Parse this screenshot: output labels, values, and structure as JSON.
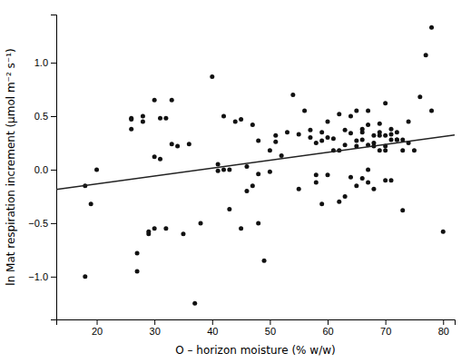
{
  "chart_data": {
    "type": "scatter",
    "xlabel": "O – horizon moisture (% w/w)",
    "ylabel": "ln Mat respiration increment (μmol m⁻² s⁻¹)",
    "series": [
      {
        "type": "scatter",
        "color": "#111111",
        "x": [
          18,
          18,
          19,
          20,
          26,
          26,
          26,
          27,
          27,
          28,
          28,
          29,
          29,
          30,
          30,
          30,
          31,
          31,
          32,
          32,
          33,
          33,
          34,
          35,
          36,
          37,
          38,
          40,
          41,
          41,
          42,
          42,
          43,
          43,
          44,
          45,
          45,
          46,
          46,
          47,
          47,
          48,
          48,
          48,
          49,
          50,
          50,
          51,
          51,
          52,
          53,
          54,
          55,
          55,
          56,
          57,
          57,
          58,
          58,
          58,
          59,
          59,
          59,
          60,
          60,
          60,
          61,
          61,
          62,
          62,
          62,
          63,
          63,
          63,
          64,
          64,
          64,
          65,
          65,
          65,
          65,
          66,
          66,
          66,
          66,
          67,
          67,
          67,
          67,
          67,
          68,
          68,
          68,
          68,
          69,
          69,
          69,
          69,
          70,
          70,
          70,
          70,
          70,
          71,
          71,
          71,
          71,
          72,
          72,
          72,
          73,
          73,
          73,
          74,
          74,
          75,
          76,
          77,
          78,
          78,
          80
        ],
        "values": [
          -0.15,
          -1.0,
          -0.32,
          0.0,
          0.47,
          0.48,
          0.38,
          -0.78,
          -0.95,
          0.5,
          0.45,
          -0.58,
          -0.6,
          0.12,
          0.65,
          -0.55,
          0.1,
          0.48,
          0.48,
          -0.55,
          0.24,
          0.65,
          0.22,
          -0.6,
          0.24,
          -1.25,
          -0.5,
          0.87,
          -0.01,
          0.05,
          0.0,
          0.5,
          -0.37,
          0.0,
          0.45,
          -0.55,
          0.47,
          0.03,
          -0.2,
          -0.15,
          0.42,
          0.27,
          -0.04,
          -0.5,
          -0.85,
          -0.02,
          0.18,
          0.26,
          0.32,
          0.13,
          0.35,
          0.7,
          0.33,
          -0.18,
          0.55,
          0.3,
          0.37,
          -0.05,
          0.25,
          -0.12,
          -0.32,
          0.27,
          0.35,
          0.45,
          0.3,
          -0.05,
          0.18,
          0.29,
          0.52,
          0.18,
          -0.3,
          0.37,
          0.23,
          -0.25,
          0.34,
          0.5,
          -0.07,
          0.22,
          0.27,
          0.55,
          -0.15,
          0.38,
          0.28,
          -0.08,
          0.35,
          0.55,
          0.42,
          0.23,
          -0.12,
          0.0,
          0.22,
          0.32,
          -0.18,
          0.25,
          0.35,
          0.43,
          0.32,
          0.18,
          0.62,
          0.18,
          0.32,
          0.22,
          -0.1,
          0.33,
          0.28,
          0.38,
          -0.1,
          0.28,
          0.28,
          0.35,
          -0.38,
          0.28,
          0.18,
          0.45,
          0.25,
          0.18,
          0.68,
          1.07,
          1.33,
          0.55,
          -0.58
        ]
      },
      {
        "type": "line",
        "color": "#222222",
        "x": [
          13,
          82
        ],
        "values": [
          -0.185,
          0.325
        ]
      }
    ],
    "xlim": [
      13,
      82
    ],
    "ylim": [
      -1.4,
      1.45
    ],
    "xticks": [
      20,
      30,
      40,
      50,
      60,
      70,
      80
    ],
    "yticks": [
      {
        "value": -1.0,
        "label": "−1.0"
      },
      {
        "value": -0.5,
        "label": "−0.5"
      },
      {
        "value": 0.0,
        "label": "0.0"
      },
      {
        "value": 0.5,
        "label": "0.5"
      },
      {
        "value": 1.0,
        "label": "1.0"
      }
    ]
  }
}
